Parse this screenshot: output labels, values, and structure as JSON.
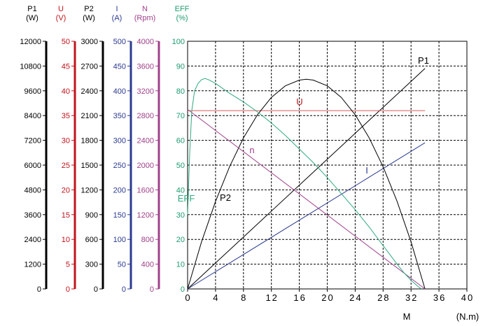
{
  "chart_data": {
    "type": "line",
    "x": {
      "label": "M",
      "unit": "(N.m)",
      "range": [
        0,
        40
      ],
      "ticks": [
        "0",
        "4",
        "8",
        "12",
        "16",
        "20",
        "24",
        "28",
        "32",
        "36",
        "40"
      ]
    },
    "axes": [
      {
        "id": "p1",
        "name": "P1",
        "unit": "(W)",
        "color": "#000000",
        "range": [
          0,
          12000
        ],
        "ticks": [
          "0",
          "1200",
          "2400",
          "3600",
          "4800",
          "6000",
          "7200",
          "8400",
          "9600",
          "10800",
          "12000"
        ]
      },
      {
        "id": "u",
        "name": "U",
        "unit": "(V)",
        "color": "#c0141c",
        "range": [
          0,
          50
        ],
        "ticks": [
          "0",
          "5",
          "10",
          "15",
          "20",
          "25",
          "30",
          "35",
          "40",
          "45",
          "50"
        ]
      },
      {
        "id": "p2",
        "name": "P2",
        "unit": "(W)",
        "color": "#000000",
        "range": [
          0,
          3000
        ],
        "ticks": [
          "0",
          "300",
          "600",
          "900",
          "1200",
          "1500",
          "1800",
          "2100",
          "2400",
          "2700",
          "3000"
        ]
      },
      {
        "id": "i",
        "name": "I",
        "unit": "(A)",
        "color": "#2b3a8f",
        "range": [
          0,
          500
        ],
        "ticks": [
          "0",
          "50",
          "100",
          "150",
          "200",
          "250",
          "300",
          "350",
          "400",
          "450",
          "500"
        ]
      },
      {
        "id": "n",
        "name": "N",
        "unit": "(Rpm)",
        "color": "#a0408a",
        "range": [
          0,
          4000
        ],
        "ticks": [
          "0",
          "400",
          "800",
          "1200",
          "1600",
          "2000",
          "2400",
          "2800",
          "3200",
          "3600",
          "4000"
        ]
      },
      {
        "id": "eff",
        "name": "EFF",
        "unit": "(%)",
        "color": "#1e9b6e",
        "range": [
          0,
          100
        ],
        "ticks": [
          "0",
          "10",
          "20",
          "30",
          "40",
          "50",
          "60",
          "70",
          "80",
          "90",
          "100"
        ]
      }
    ],
    "series": [
      {
        "name": "P1",
        "axis": "p1",
        "color": "#000000",
        "label_text": "P1",
        "x": [
          0,
          34
        ],
        "values": [
          0,
          10680
        ]
      },
      {
        "name": "U",
        "axis": "u",
        "color": "#e05858",
        "label_text": "U",
        "x": [
          0,
          34
        ],
        "values": [
          36,
          36
        ]
      },
      {
        "name": "P2",
        "axis": "p2",
        "color": "#000000",
        "label_text": "P2",
        "x": [
          0,
          2,
          4,
          6,
          8,
          10,
          12,
          14,
          16,
          17,
          18,
          20,
          22,
          24,
          26,
          28,
          30,
          32,
          34
        ],
        "values": [
          0,
          570,
          1060,
          1480,
          1830,
          2110,
          2320,
          2460,
          2530,
          2540,
          2530,
          2460,
          2320,
          2110,
          1830,
          1480,
          1060,
          570,
          0
        ]
      },
      {
        "name": "I",
        "axis": "i",
        "color": "#2b3a8f",
        "label_text": "I",
        "x": [
          0,
          34
        ],
        "values": [
          0,
          295
        ]
      },
      {
        "name": "n",
        "axis": "n",
        "color": "#a0408a",
        "label_text": "n",
        "x": [
          0,
          34
        ],
        "values": [
          2900,
          0
        ]
      },
      {
        "name": "EFF",
        "axis": "eff",
        "color": "#2eaa80",
        "label_text": "EFF",
        "x": [
          0,
          0.3,
          0.6,
          1,
          1.5,
          2,
          2.5,
          3,
          4,
          5,
          6,
          8,
          10,
          12,
          14,
          16,
          18,
          20,
          22,
          24,
          26,
          28,
          30,
          31,
          32,
          33,
          33.5
        ],
        "values": [
          30,
          55,
          72,
          80,
          83,
          84.5,
          85,
          84.5,
          83,
          81,
          79,
          75.5,
          71.5,
          67,
          62,
          56.5,
          51,
          45,
          38.5,
          32,
          25,
          17.5,
          10,
          6.5,
          3.5,
          1,
          0
        ]
      }
    ],
    "grid": true
  }
}
